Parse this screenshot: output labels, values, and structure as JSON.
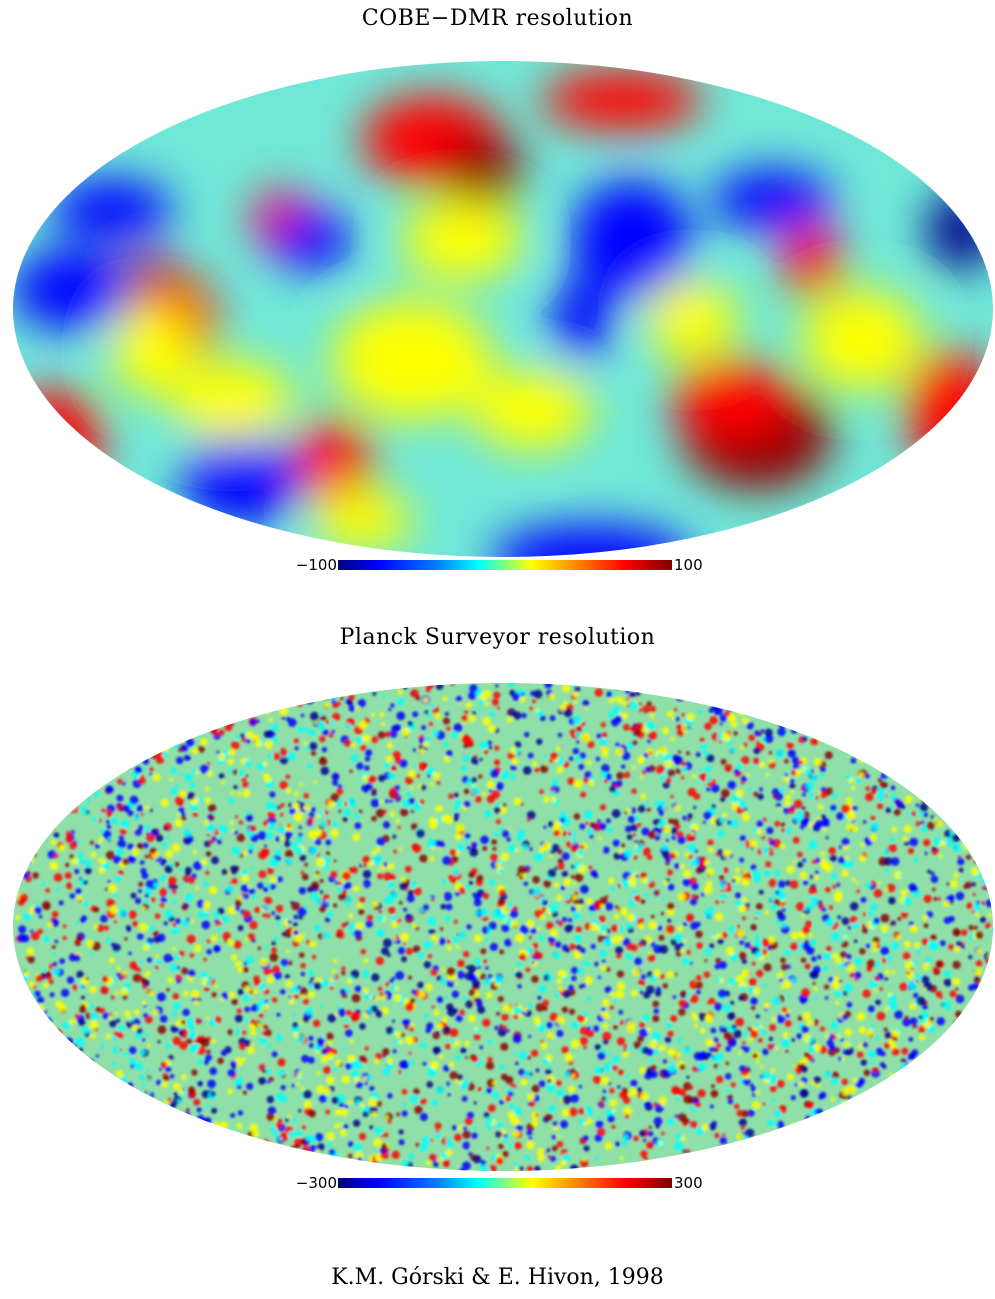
{
  "maps": [
    {
      "title": "COBE−DMR resolution",
      "colorbar": {
        "min_label": "−100",
        "max_label": "100",
        "min": -100,
        "max": 100
      },
      "texture": "smooth-large-scale"
    },
    {
      "title": "Planck Surveyor resolution",
      "colorbar": {
        "min_label": "−300",
        "max_label": "300",
        "min": -300,
        "max": 300
      },
      "texture": "fine-grained"
    }
  ],
  "credit": "K.M. Górski & E. Hivon, 1998",
  "colors": {
    "deep_blue": "#00008c",
    "blue": "#0000ff",
    "cyan": "#00ffff",
    "yellow": "#ffff00",
    "red": "#ff0000",
    "dark_red": "#8c0000"
  }
}
